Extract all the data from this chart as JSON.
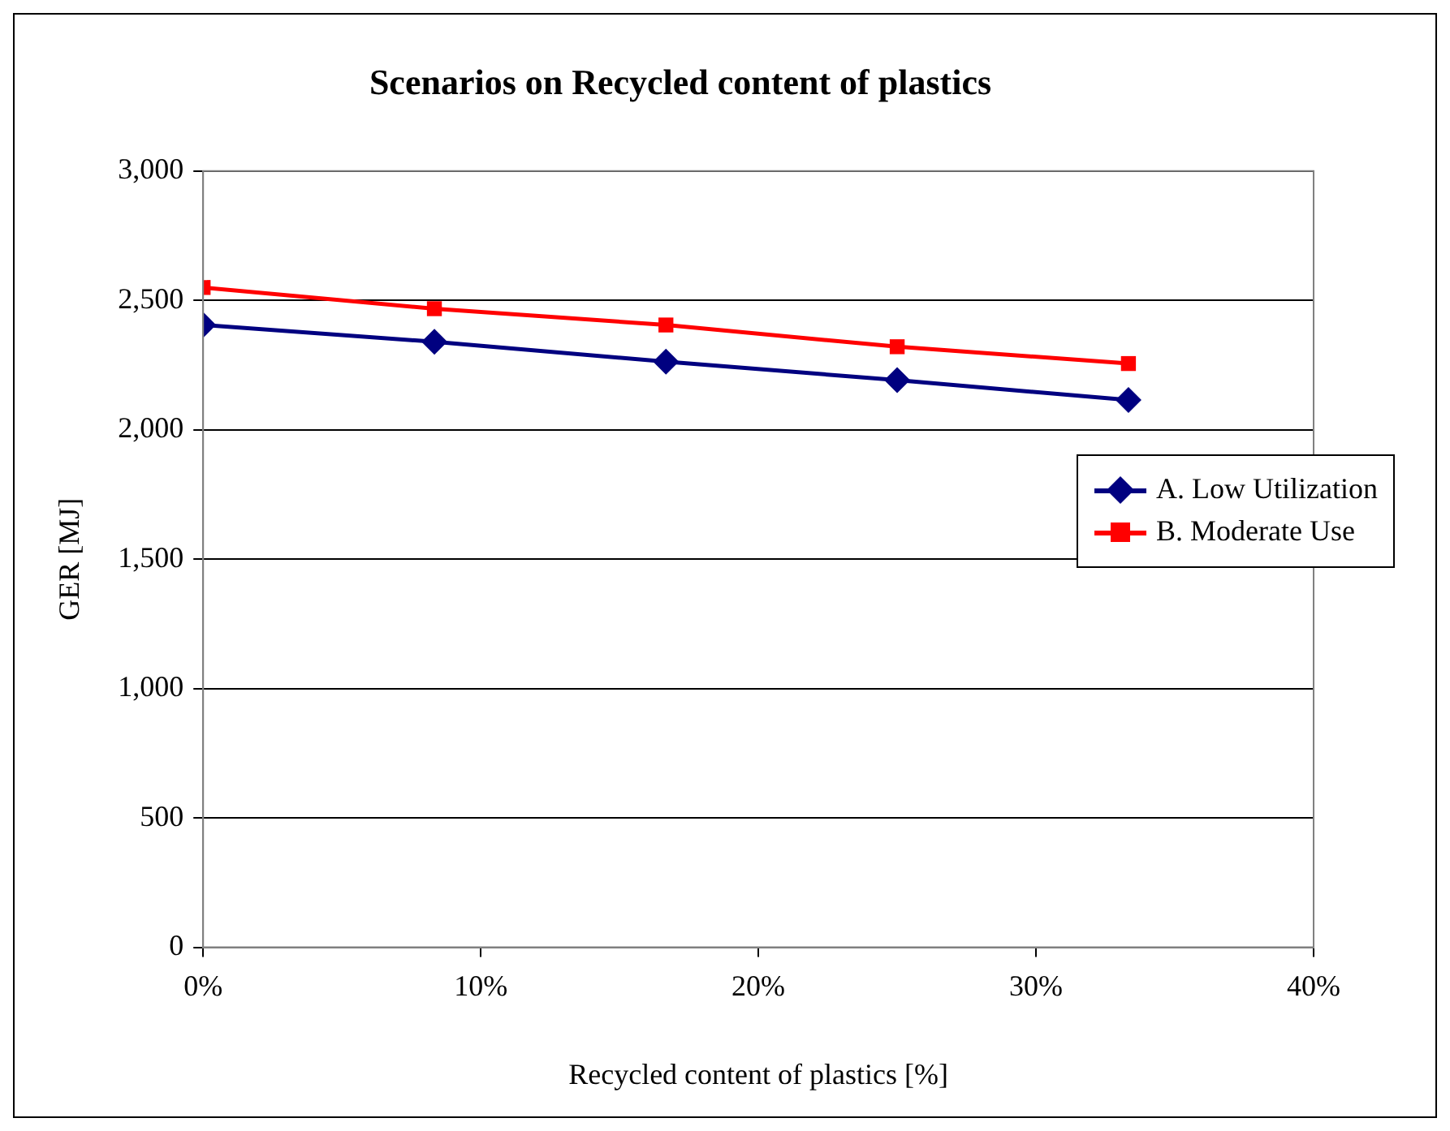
{
  "chart_data": {
    "type": "line",
    "title": "Scenarios on Recycled content of plastics",
    "xlabel": "Recycled content of plastics [%]",
    "ylabel": "GER [MJ]",
    "x": [
      0,
      8.33,
      16.67,
      25,
      33.33
    ],
    "series": [
      {
        "name": "A. Low Utilization",
        "color": "#000080",
        "marker": "diamond",
        "values": [
          2405,
          2340,
          2263,
          2192,
          2115
        ]
      },
      {
        "name": "B. Moderate Use",
        "color": "#ff0000",
        "marker": "square",
        "values": [
          2550,
          2468,
          2405,
          2321,
          2256
        ]
      }
    ],
    "xlim": [
      0,
      40
    ],
    "xticks": [
      {
        "value": 0,
        "label": "0%"
      },
      {
        "value": 10,
        "label": "10%"
      },
      {
        "value": 20,
        "label": "20%"
      },
      {
        "value": 30,
        "label": "30%"
      },
      {
        "value": 40,
        "label": "40%"
      }
    ],
    "ylim": [
      0,
      3000
    ],
    "yticks": [
      0,
      500,
      {
        "value": 1000,
        "label": "1,000"
      },
      {
        "value": 1500,
        "label": "1,500"
      },
      {
        "value": 2000,
        "label": "2,000"
      },
      {
        "value": 2500,
        "label": "2,500"
      },
      {
        "value": 3000,
        "label": "3,000"
      }
    ],
    "grid": "y",
    "legend": "right",
    "line_style": "solid"
  }
}
